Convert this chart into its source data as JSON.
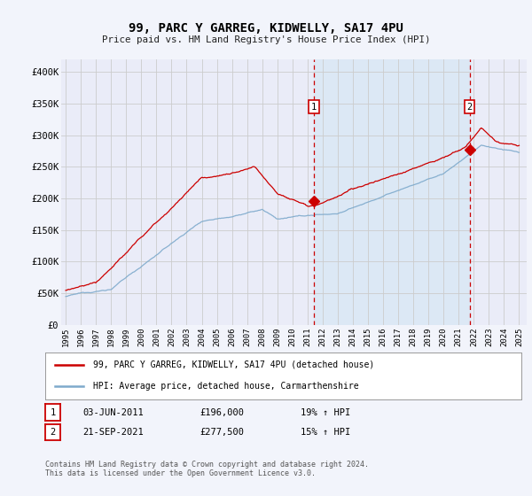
{
  "title": "99, PARC Y GARREG, KIDWELLY, SA17 4PU",
  "subtitle": "Price paid vs. HM Land Registry's House Price Index (HPI)",
  "background_color": "#f2f4fb",
  "plot_background": "#eaecf8",
  "shade_color": "#dce8f5",
  "red_line_label": "99, PARC Y GARREG, KIDWELLY, SA17 4PU (detached house)",
  "blue_line_label": "HPI: Average price, detached house, Carmarthenshire",
  "annotation1_date": "03-JUN-2011",
  "annotation1_price": "£196,000",
  "annotation1_hpi": "19% ↑ HPI",
  "annotation1_year": 2011.42,
  "annotation1_value": 196000,
  "annotation2_date": "21-SEP-2021",
  "annotation2_price": "£277,500",
  "annotation2_hpi": "15% ↑ HPI",
  "annotation2_year": 2021.72,
  "annotation2_value": 277500,
  "ylim": [
    0,
    420000
  ],
  "xlim_start": 1994.7,
  "xlim_end": 2025.5,
  "yticks": [
    0,
    50000,
    100000,
    150000,
    200000,
    250000,
    300000,
    350000,
    400000
  ],
  "ytick_labels": [
    "£0",
    "£50K",
    "£100K",
    "£150K",
    "£200K",
    "£250K",
    "£300K",
    "£350K",
    "£400K"
  ],
  "xtick_years": [
    1995,
    1996,
    1997,
    1998,
    1999,
    2000,
    2001,
    2002,
    2003,
    2004,
    2005,
    2006,
    2007,
    2008,
    2009,
    2010,
    2011,
    2012,
    2013,
    2014,
    2015,
    2016,
    2017,
    2018,
    2019,
    2020,
    2021,
    2022,
    2023,
    2024,
    2025
  ],
  "footer": "Contains HM Land Registry data © Crown copyright and database right 2024.\nThis data is licensed under the Open Government Licence v3.0.",
  "red_color": "#cc0000",
  "blue_color": "#7eaacc",
  "vline_color": "#cc0000",
  "grid_color": "#cccccc",
  "box_color": "#cc0000"
}
